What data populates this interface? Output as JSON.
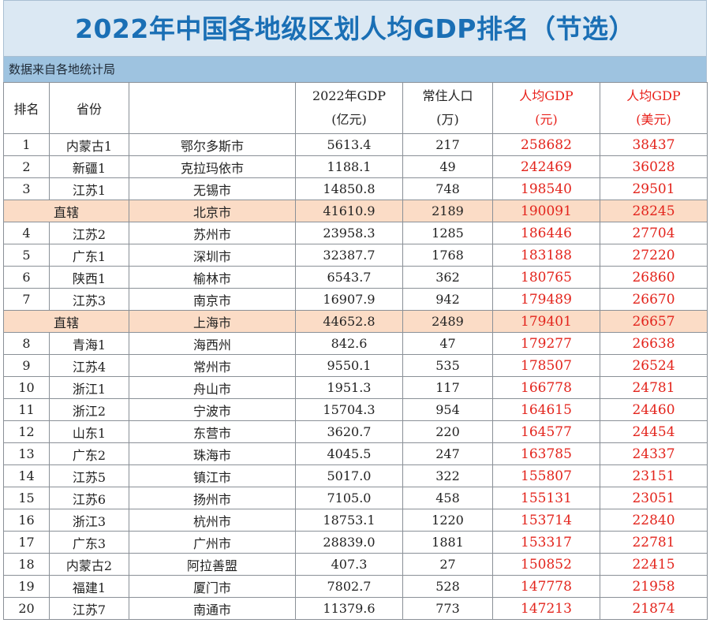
{
  "title": "2022年中国各地级区划人均GDP排名（节选）",
  "source_note": "数据来自各地统计局",
  "colors": {
    "title_text": "#1a6fb5",
    "title_bg": "#dbe8f3",
    "source_bg": "#9ec3e0",
    "highlight_row": "#fbdcc6",
    "per_capita_text": "#e3241c"
  },
  "headers": {
    "rank": "排名",
    "province": "省份",
    "city": "",
    "gdp": [
      "2022年GDP",
      "(亿元)"
    ],
    "population": [
      "常住人口",
      "(万)"
    ],
    "per_capita_cny": [
      "人均GDP",
      "(元)"
    ],
    "per_capita_usd": [
      "人均GDP",
      "(美元)"
    ]
  },
  "rows": [
    {
      "rank": "1",
      "province": "内蒙古1",
      "city": "鄂尔多斯市",
      "gdp": "5613.4",
      "population": "217",
      "per_capita_cny": "258682",
      "per_capita_usd": "38437",
      "direct": false
    },
    {
      "rank": "2",
      "province": "新疆1",
      "city": "克拉玛依市",
      "gdp": "1188.1",
      "population": "49",
      "per_capita_cny": "242469",
      "per_capita_usd": "36028",
      "direct": false
    },
    {
      "rank": "3",
      "province": "江苏1",
      "city": "无锡市",
      "gdp": "14850.8",
      "population": "748",
      "per_capita_cny": "198540",
      "per_capita_usd": "29501",
      "direct": false
    },
    {
      "rank": "",
      "province": "直辖",
      "city": "北京市",
      "gdp": "41610.9",
      "population": "2189",
      "per_capita_cny": "190091",
      "per_capita_usd": "28245",
      "direct": true
    },
    {
      "rank": "4",
      "province": "江苏2",
      "city": "苏州市",
      "gdp": "23958.3",
      "population": "1285",
      "per_capita_cny": "186446",
      "per_capita_usd": "27704",
      "direct": false
    },
    {
      "rank": "5",
      "province": "广东1",
      "city": "深圳市",
      "gdp": "32387.7",
      "population": "1768",
      "per_capita_cny": "183188",
      "per_capita_usd": "27220",
      "direct": false
    },
    {
      "rank": "6",
      "province": "陕西1",
      "city": "榆林市",
      "gdp": "6543.7",
      "population": "362",
      "per_capita_cny": "180765",
      "per_capita_usd": "26860",
      "direct": false
    },
    {
      "rank": "7",
      "province": "江苏3",
      "city": "南京市",
      "gdp": "16907.9",
      "population": "942",
      "per_capita_cny": "179489",
      "per_capita_usd": "26670",
      "direct": false
    },
    {
      "rank": "",
      "province": "直辖",
      "city": "上海市",
      "gdp": "44652.8",
      "population": "2489",
      "per_capita_cny": "179401",
      "per_capita_usd": "26657",
      "direct": true
    },
    {
      "rank": "8",
      "province": "青海1",
      "city": "海西州",
      "gdp": "842.6",
      "population": "47",
      "per_capita_cny": "179277",
      "per_capita_usd": "26638",
      "direct": false
    },
    {
      "rank": "9",
      "province": "江苏4",
      "city": "常州市",
      "gdp": "9550.1",
      "population": "535",
      "per_capita_cny": "178507",
      "per_capita_usd": "26524",
      "direct": false
    },
    {
      "rank": "10",
      "province": "浙江1",
      "city": "舟山市",
      "gdp": "1951.3",
      "population": "117",
      "per_capita_cny": "166778",
      "per_capita_usd": "24781",
      "direct": false
    },
    {
      "rank": "11",
      "province": "浙江2",
      "city": "宁波市",
      "gdp": "15704.3",
      "population": "954",
      "per_capita_cny": "164615",
      "per_capita_usd": "24460",
      "direct": false
    },
    {
      "rank": "12",
      "province": "山东1",
      "city": "东营市",
      "gdp": "3620.7",
      "population": "220",
      "per_capita_cny": "164577",
      "per_capita_usd": "24454",
      "direct": false
    },
    {
      "rank": "13",
      "province": "广东2",
      "city": "珠海市",
      "gdp": "4045.5",
      "population": "247",
      "per_capita_cny": "163785",
      "per_capita_usd": "24337",
      "direct": false
    },
    {
      "rank": "14",
      "province": "江苏5",
      "city": "镇江市",
      "gdp": "5017.0",
      "population": "322",
      "per_capita_cny": "155807",
      "per_capita_usd": "23151",
      "direct": false
    },
    {
      "rank": "15",
      "province": "江苏6",
      "city": "扬州市",
      "gdp": "7105.0",
      "population": "458",
      "per_capita_cny": "155131",
      "per_capita_usd": "23051",
      "direct": false
    },
    {
      "rank": "16",
      "province": "浙江3",
      "city": "杭州市",
      "gdp": "18753.1",
      "population": "1220",
      "per_capita_cny": "153714",
      "per_capita_usd": "22840",
      "direct": false
    },
    {
      "rank": "17",
      "province": "广东3",
      "city": "广州市",
      "gdp": "28839.0",
      "population": "1881",
      "per_capita_cny": "153317",
      "per_capita_usd": "22781",
      "direct": false
    },
    {
      "rank": "18",
      "province": "内蒙古2",
      "city": "阿拉善盟",
      "gdp": "407.3",
      "population": "27",
      "per_capita_cny": "150852",
      "per_capita_usd": "22415",
      "direct": false
    },
    {
      "rank": "19",
      "province": "福建1",
      "city": "厦门市",
      "gdp": "7802.7",
      "population": "528",
      "per_capita_cny": "147778",
      "per_capita_usd": "21958",
      "direct": false
    },
    {
      "rank": "20",
      "province": "江苏7",
      "city": "南通市",
      "gdp": "11379.6",
      "population": "773",
      "per_capita_cny": "147213",
      "per_capita_usd": "21874",
      "direct": false
    }
  ]
}
